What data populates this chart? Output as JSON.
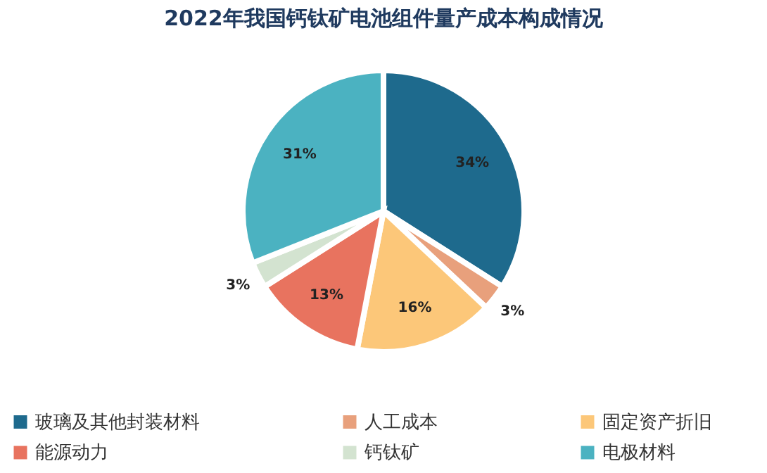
{
  "chart_data": {
    "type": "pie",
    "title": "2022年我国钙钛矿电池组件量产成本构成情况",
    "categories": [
      "玻璃及其他封装材料",
      "人工成本",
      "固定资产折旧",
      "能源动力",
      "钙钛矿",
      "电极材料"
    ],
    "values": [
      34,
      3,
      16,
      13,
      3,
      31
    ],
    "colors": [
      "#1e6a8d",
      "#e8a07c",
      "#fcc779",
      "#e8735f",
      "#d3e3d0",
      "#4bb2c1"
    ],
    "value_labels": [
      "34%",
      "3%",
      "16%",
      "13%",
      "3%",
      "31%"
    ],
    "legend": "bottom"
  }
}
